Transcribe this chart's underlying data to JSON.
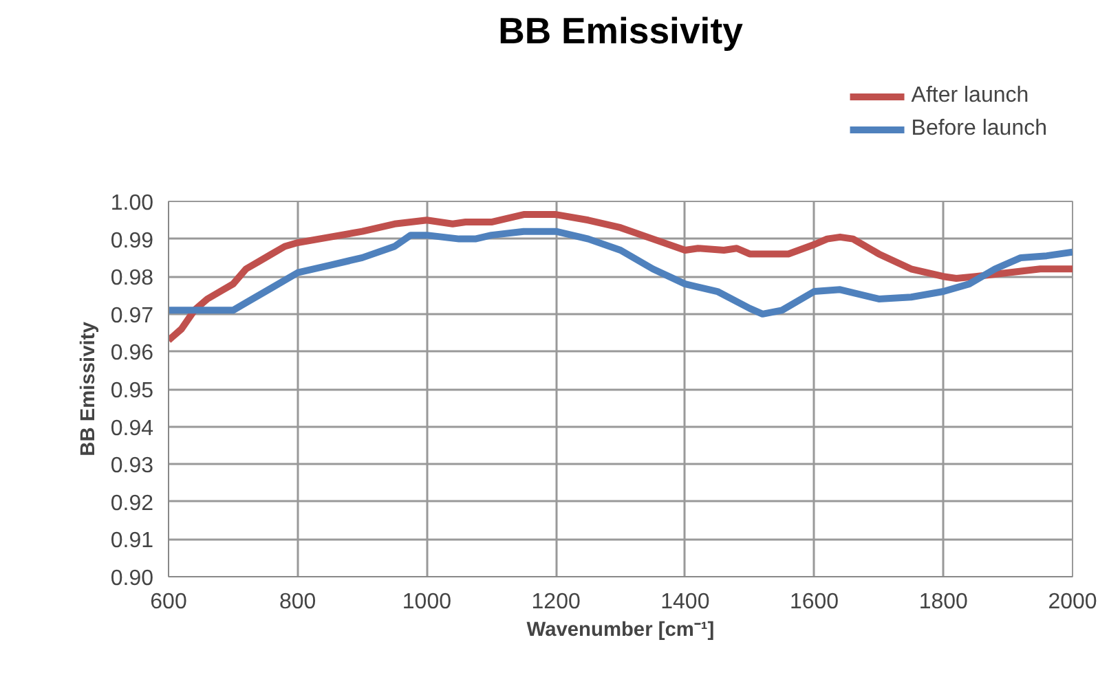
{
  "chart_data": {
    "type": "line",
    "title": "BB Emissivity",
    "xlabel": "Wavenumber [cm⁻¹]",
    "ylabel": "BB Emissivity",
    "xlim": [
      600,
      2000
    ],
    "xticks": [
      600,
      800,
      1000,
      1200,
      1400,
      1600,
      1800,
      2000
    ],
    "ylim": [
      0.9,
      1.0
    ],
    "yticks": [
      {
        "value": 0.9,
        "label": "0.90"
      },
      {
        "value": 0.91,
        "label": "0.91"
      },
      {
        "value": 0.92,
        "label": "0.92"
      },
      {
        "value": 0.93,
        "label": "0.93"
      },
      {
        "value": 0.94,
        "label": "0.94"
      },
      {
        "value": 0.95,
        "label": "0.95"
      },
      {
        "value": 0.96,
        "label": "0.96"
      },
      {
        "value": 0.97,
        "label": "0.97"
      },
      {
        "value": 0.98,
        "label": "0.98"
      },
      {
        "value": 0.99,
        "label": "0.99"
      },
      {
        "value": 1.0,
        "label": "1.00"
      }
    ],
    "grid": true,
    "legend": "top right",
    "marker": "none",
    "line_style": "solid",
    "series": [
      {
        "name": "After launch",
        "color": "#c0504d",
        "x": [
          600,
          620,
          640,
          660,
          680,
          700,
          720,
          740,
          760,
          780,
          800,
          850,
          900,
          950,
          1000,
          1020,
          1040,
          1060,
          1100,
          1150,
          1200,
          1250,
          1300,
          1350,
          1400,
          1420,
          1460,
          1480,
          1500,
          1560,
          1600,
          1620,
          1640,
          1660,
          1700,
          1750,
          1800,
          1820,
          1850,
          1900,
          1950,
          2000
        ],
        "values": [
          0.963,
          0.966,
          0.971,
          0.974,
          0.976,
          0.978,
          0.982,
          0.984,
          0.986,
          0.988,
          0.989,
          0.9905,
          0.992,
          0.994,
          0.995,
          0.9945,
          0.994,
          0.9945,
          0.9945,
          0.9965,
          0.9965,
          0.995,
          0.993,
          0.99,
          0.987,
          0.9875,
          0.987,
          0.9875,
          0.986,
          0.986,
          0.9885,
          0.99,
          0.9905,
          0.99,
          0.986,
          0.982,
          0.98,
          0.9795,
          0.98,
          0.981,
          0.982,
          0.982
        ]
      },
      {
        "name": "Before launch",
        "color": "#4f81bd",
        "x": [
          600,
          700,
          720,
          760,
          800,
          850,
          900,
          950,
          975,
          1000,
          1050,
          1075,
          1100,
          1150,
          1200,
          1250,
          1300,
          1350,
          1400,
          1450,
          1500,
          1520,
          1550,
          1600,
          1640,
          1700,
          1750,
          1800,
          1840,
          1880,
          1920,
          1960,
          2000
        ],
        "values": [
          0.971,
          0.971,
          0.973,
          0.977,
          0.981,
          0.983,
          0.985,
          0.988,
          0.991,
          0.991,
          0.99,
          0.99,
          0.991,
          0.992,
          0.992,
          0.99,
          0.987,
          0.982,
          0.978,
          0.976,
          0.9715,
          0.97,
          0.971,
          0.976,
          0.9765,
          0.974,
          0.9745,
          0.976,
          0.978,
          0.982,
          0.985,
          0.9855,
          0.9865
        ]
      }
    ]
  }
}
